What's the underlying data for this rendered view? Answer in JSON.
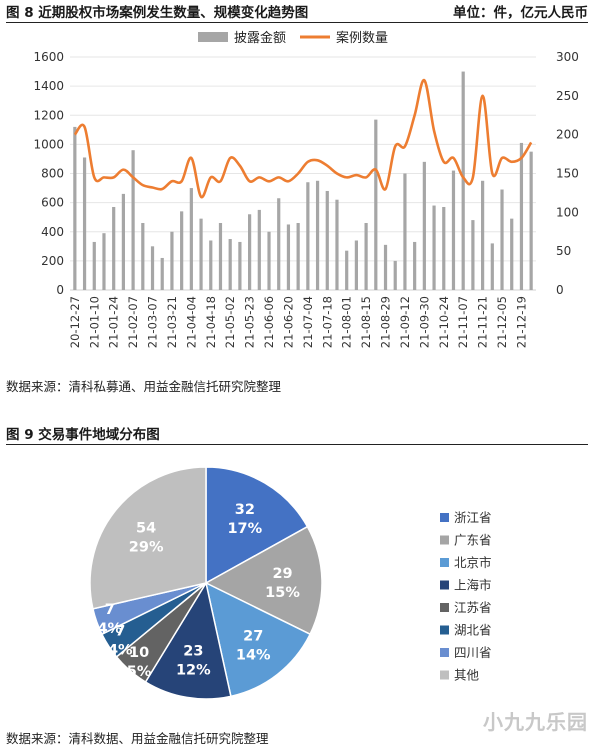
{
  "fig8": {
    "title": "图 8 近期股权市场案例发生数量、规模变化趋势图",
    "unit": "单位：件，亿元人民币",
    "source": "数据来源：清科私募通、用益金融信托研究院整理"
  },
  "fig9": {
    "title": "图 9 交易事件地域分布图",
    "source": "数据来源：清科数据、用益金融信托研究院整理"
  },
  "watermark": "小九九乐园",
  "chart_data": [
    {
      "type": "bar+line",
      "legend_placement": "top-center",
      "legend": [
        "披露金额",
        "案例数量"
      ],
      "colors": {
        "bars": "#a6a6a6",
        "line": "#ed7d31"
      },
      "y_left": {
        "min": 0,
        "max": 1600,
        "ticks": [
          0,
          200,
          400,
          600,
          800,
          1000,
          1200,
          1400,
          1600
        ]
      },
      "y_right": {
        "min": 0,
        "max": 300,
        "ticks": [
          0,
          50,
          100,
          150,
          200,
          250,
          300
        ]
      },
      "x_tick_labels": [
        "20-12-27",
        "21-01-10",
        "21-01-24",
        "21-02-07",
        "21-03-07",
        "21-03-21",
        "21-04-04",
        "21-04-18",
        "21-05-02",
        "21-05-23",
        "21-06-06",
        "21-06-20",
        "21-07-04",
        "21-07-18",
        "21-08-01",
        "21-08-15",
        "21-08-29",
        "21-09-12",
        "21-09-30",
        "21-10-24",
        "21-11-07",
        "21-11-21",
        "21-12-05",
        "21-12-19"
      ],
      "series": [
        {
          "name": "披露金额",
          "axis": "left",
          "values": [
            1120,
            910,
            330,
            390,
            570,
            660,
            960,
            460,
            300,
            220,
            400,
            540,
            700,
            490,
            340,
            460,
            350,
            330,
            520,
            550,
            400,
            630,
            450,
            460,
            740,
            750,
            680,
            620,
            270,
            340,
            460,
            1170,
            310,
            200,
            800,
            330,
            880,
            580,
            570,
            820,
            1500,
            480,
            750,
            320,
            690,
            490,
            1010,
            950
          ]
        },
        {
          "name": "案例数量",
          "axis": "right",
          "values": [
            200,
            210,
            145,
            145,
            145,
            155,
            145,
            135,
            132,
            130,
            140,
            140,
            170,
            120,
            145,
            140,
            170,
            160,
            140,
            145,
            140,
            145,
            140,
            150,
            165,
            167,
            160,
            150,
            145,
            148,
            145,
            155,
            130,
            185,
            185,
            225,
            270,
            205,
            165,
            170,
            145,
            145,
            250,
            150,
            170,
            165,
            170,
            190
          ]
        }
      ]
    },
    {
      "type": "pie",
      "slices": [
        {
          "label": "浙江省",
          "value": 32,
          "percent": "17%",
          "color": "#4472c4"
        },
        {
          "label": "广东省",
          "value": 29,
          "percent": "15%",
          "color": "#a5a5a5"
        },
        {
          "label": "北京市",
          "value": 27,
          "percent": "14%",
          "color": "#5b9bd5"
        },
        {
          "label": "上海市",
          "value": 23,
          "percent": "12%",
          "color": "#264478"
        },
        {
          "label": "江苏省",
          "value": 10,
          "percent": "5%",
          "color": "#636363"
        },
        {
          "label": "湖北省",
          "value": 7,
          "percent": "4%",
          "color": "#255e91"
        },
        {
          "label": "四川省",
          "value": 7,
          "percent": "4%",
          "color": "#698ed0"
        },
        {
          "label": "其他",
          "value": 54,
          "percent": "29%",
          "color": "#bfbfbf"
        }
      ],
      "legend_placement": "right"
    }
  ]
}
